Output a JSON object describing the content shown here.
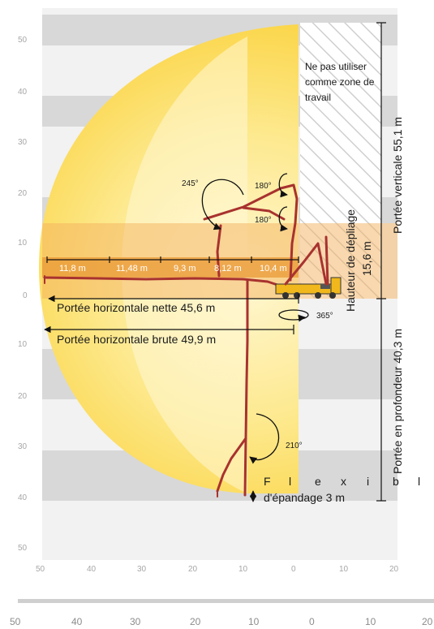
{
  "axis": {
    "left_ticks": [
      "50",
      "40",
      "30",
      "20",
      "10",
      "0",
      "10",
      "20",
      "30",
      "40",
      "50"
    ],
    "bottom_ticks": [
      "50",
      "40",
      "30",
      "20",
      "10",
      "0",
      "10",
      "20"
    ],
    "footer_ticks": [
      "50",
      "40",
      "30",
      "20",
      "10",
      "0",
      "10",
      "20"
    ]
  },
  "segments": [
    "11,8 m",
    "11,48 m",
    "9,3 m",
    "8,12 m",
    "10,4 m"
  ],
  "angles": {
    "a245": "245°",
    "a180_top": "180°",
    "a180_bottom": "180°",
    "a365": "365°",
    "a210": "210°"
  },
  "labels": {
    "net_reach": "Portée horizontale nette 45,6 m",
    "gross_reach": "Portée horizontale brute 49,9 m",
    "no_work_zone": [
      "Ne pas utiliser",
      "comme zone de",
      "travail"
    ],
    "unfold_height": [
      "Hauteur de dépliage",
      "15,6 m"
    ],
    "vertical_reach": "Portée verticale 55,1 m",
    "depth_reach": "Portée en profondeur 40,3 m",
    "hose_letters": [
      "F",
      "l",
      "e",
      "x",
      "i",
      "b",
      "l"
    ],
    "hose_rest": "d'épandage 3 m"
  },
  "colors": {
    "stripe_dark": "#d8d8d8",
    "stripe_light": "#f2f2f2",
    "reach_yellow": "#fde27a",
    "reach_core": "#fff8d6",
    "unfold_band": "#f4b25f",
    "boom": "#a8322f"
  }
}
